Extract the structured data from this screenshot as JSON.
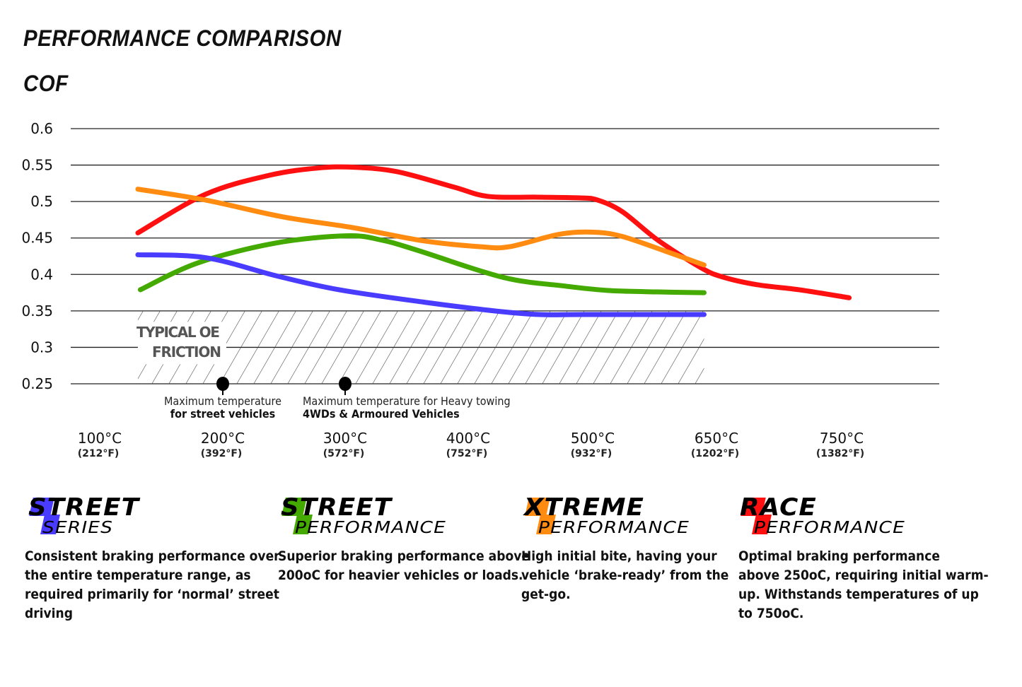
{
  "header": {
    "title": "PERFORMANCE COMPARISON",
    "subtitle": "COF"
  },
  "chart_data": {
    "type": "line",
    "title": "PERFORMANCE COMPARISON",
    "ylabel": "COF",
    "ylim": [
      0.25,
      0.6
    ],
    "yticks": [
      "0.6",
      "0.55",
      "0.5",
      "0.45",
      "0.4",
      "0.35",
      "0.3",
      "0.25"
    ],
    "ytick_values": [
      0.6,
      0.55,
      0.5,
      0.45,
      0.4,
      0.35,
      0.3,
      0.25
    ],
    "x_ticks": [
      {
        "value": 100,
        "label": "100°C",
        "sub": "(212°F)"
      },
      {
        "value": 200,
        "label": "200°C",
        "sub": "(392°F)"
      },
      {
        "value": 300,
        "label": "300°C",
        "sub": "(572°F)"
      },
      {
        "value": 400,
        "label": "400°C",
        "sub": "(752°F)"
      },
      {
        "value": 500,
        "label": "500°C",
        "sub": "(932°F)"
      },
      {
        "value": 650,
        "label": "650°C",
        "sub": "(1202°F)"
      },
      {
        "value": 750,
        "label": "750°C",
        "sub": "(1382°F)"
      }
    ],
    "grid": true,
    "series": [
      {
        "key": "race",
        "color": "#ff1010",
        "x": [
          131,
          186,
          238,
          278,
          307,
          342,
          388,
          416,
          456,
          490,
          506,
          536,
          579,
          630,
          654,
          682,
          716,
          756
        ],
        "y": [
          0.457,
          0.51,
          0.536,
          0.546,
          0.547,
          0.541,
          0.52,
          0.507,
          0.506,
          0.505,
          0.502,
          0.486,
          0.447,
          0.41,
          0.397,
          0.386,
          0.379,
          0.368
        ]
      },
      {
        "key": "xtreme",
        "color": "#ff8c10",
        "x": [
          131,
          186,
          249,
          307,
          364,
          410,
          433,
          473,
          501,
          536,
          588,
          635
        ],
        "y": [
          0.517,
          0.502,
          0.479,
          0.464,
          0.446,
          0.438,
          0.438,
          0.455,
          0.458,
          0.452,
          0.432,
          0.413
        ]
      },
      {
        "key": "street-performance",
        "color": "#44aa00",
        "x": [
          133,
          180,
          243,
          301,
          330,
          359,
          428,
          478,
          519,
          579,
          635
        ],
        "y": [
          0.379,
          0.416,
          0.443,
          0.453,
          0.447,
          0.433,
          0.396,
          0.384,
          0.378,
          0.376,
          0.375
        ]
      },
      {
        "key": "street-series",
        "color": "#4a3cff",
        "x": [
          131,
          186,
          244,
          295,
          364,
          421,
          457,
          495,
          635
        ],
        "y": [
          0.427,
          0.423,
          0.398,
          0.379,
          0.362,
          0.35,
          0.345,
          0.345,
          0.345
        ]
      }
    ],
    "shaded_region": {
      "label_line1": "TYPICAL OE",
      "label_line2": "FRICTION",
      "x": [
        131,
        635
      ],
      "y": [
        0.25,
        0.35
      ]
    },
    "markers": [
      {
        "x": 200,
        "y": 0.25,
        "line1": "Maximum temperature",
        "line2": "for street vehicles"
      },
      {
        "x": 300,
        "y": 0.25,
        "line1": "Maximum temperature for Heavy towing",
        "line2": "4WDs & Armoured Vehicles"
      }
    ]
  },
  "products": [
    {
      "line1": "STREET",
      "line2": "SERIES",
      "color": "#4a3cff",
      "desc": [
        "Consistent braking performance over",
        "the entire temperature range, as",
        "required primarily for ‘normal’ street",
        "driving"
      ]
    },
    {
      "line1": "STREET",
      "line2": "PERFORMANCE",
      "color": "#44aa00",
      "desc": [
        "Superior braking performance above",
        "200oC for heavier vehicles or loads."
      ]
    },
    {
      "line1": "XTREME",
      "line2": "PERFORMANCE",
      "color": "#ff8c10",
      "desc": [
        "High initial bite, having your",
        "vehicle ‘brake-ready’ from the",
        "get-go."
      ]
    },
    {
      "line1": "RACE",
      "line2": "PERFORMANCE",
      "color": "#ff1010",
      "desc": [
        "Optimal braking performance",
        "above 250oC, requiring initial warm-",
        "up. Withstands temperatures of up",
        "to 750oC."
      ]
    }
  ]
}
